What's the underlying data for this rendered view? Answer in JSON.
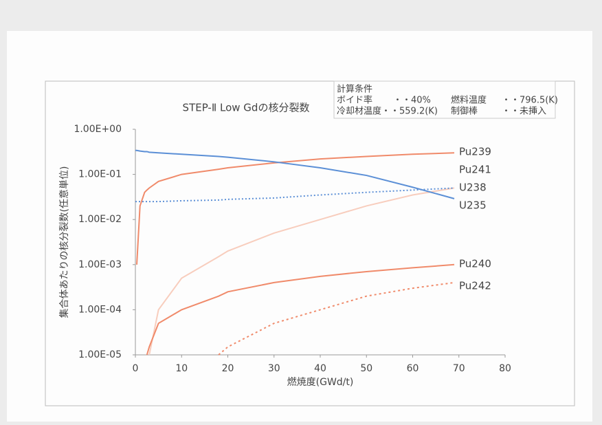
{
  "chart_data": {
    "type": "line",
    "title": "STEP-Ⅱ Low Gdの核分裂数",
    "annotations": [
      "計算条件",
      "ボイド率",
      "・・40%",
      "燃料温度",
      "・・796.5(K)",
      "冷却材温度・・559.2(K)",
      "制御棒",
      "・・未挿入"
    ],
    "x_label": "燃焼度(GWd/t)",
    "y_label": "集合体あたりの核分裂数(任意単位)",
    "log_y": true,
    "x": [
      0,
      0.3,
      1,
      2,
      2.5,
      3,
      5,
      10,
      18,
      20,
      30,
      40,
      50,
      60,
      69
    ],
    "series": [
      {
        "name": "Pu239",
        "color": "#f08a6a",
        "linestyle": "solid",
        "values": [
          null,
          0.001,
          0.02,
          0.04,
          0.045,
          0.05,
          0.07,
          0.1,
          0.13,
          0.14,
          0.18,
          0.22,
          0.25,
          0.28,
          0.3
        ]
      },
      {
        "name": "Pu241",
        "color": "#f8cdbd",
        "linestyle": "solid",
        "values": [
          null,
          null,
          null,
          null,
          null,
          1e-05,
          0.0001,
          0.0005,
          0.0015,
          0.002,
          0.005,
          0.01,
          0.02,
          0.035,
          0.05
        ]
      },
      {
        "name": "U238",
        "color": "#5b8fd6",
        "linestyle": "dotted",
        "values": [
          0.025,
          0.025,
          0.025,
          0.025,
          0.025,
          0.025,
          0.025,
          0.026,
          0.027,
          0.028,
          0.03,
          0.035,
          0.04,
          0.045,
          0.05
        ]
      },
      {
        "name": "U235",
        "color": "#5b8fd6",
        "linestyle": "solid",
        "values": [
          0.34,
          0.34,
          0.33,
          0.32,
          0.32,
          0.31,
          0.3,
          0.28,
          0.25,
          0.24,
          0.19,
          0.14,
          0.095,
          0.052,
          0.029
        ]
      },
      {
        "name": "Pu240",
        "color": "#f08a6a",
        "linestyle": "solid",
        "values": [
          null,
          null,
          null,
          null,
          1e-05,
          1.5e-05,
          5e-05,
          0.0001,
          0.0002,
          0.00025,
          0.0004,
          0.00055,
          0.0007,
          0.00085,
          0.001
        ]
      },
      {
        "name": "Pu242",
        "color": "#f08a6a",
        "linestyle": "dashed",
        "values": [
          null,
          null,
          null,
          null,
          null,
          null,
          null,
          null,
          1e-05,
          1.5e-05,
          5e-05,
          0.0001,
          0.0002,
          0.0003,
          0.0004
        ]
      }
    ],
    "xlim": [
      0,
      80
    ],
    "xticks": [
      0,
      10,
      20,
      30,
      40,
      50,
      60,
      70,
      80
    ],
    "ylim": [
      1e-05,
      1
    ],
    "yticks": [
      {
        "value": 1e-05,
        "label": "1.00E-05"
      },
      {
        "value": 0.0001,
        "label": "1.00E-04"
      },
      {
        "value": 0.001,
        "label": "1.00E-03"
      },
      {
        "value": 0.01,
        "label": "1.00E-02"
      },
      {
        "value": 0.1,
        "label": "1.00E-01"
      },
      {
        "value": 1,
        "label": "1.00E+00"
      }
    ],
    "grid": false
  }
}
